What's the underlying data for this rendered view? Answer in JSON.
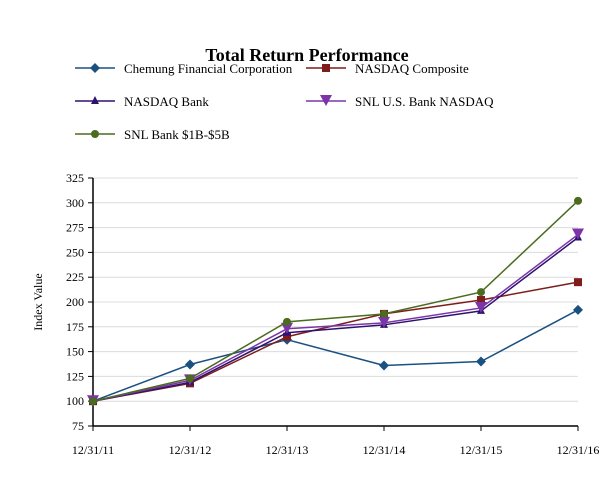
{
  "chart_data": {
    "type": "line",
    "title": "Total Return Performance",
    "xlabel": "",
    "ylabel": "Index Value",
    "categories": [
      "12/31/11",
      "12/31/12",
      "12/31/13",
      "12/31/14",
      "12/31/15",
      "12/31/16"
    ],
    "ylim": [
      75,
      325
    ],
    "yticks": [
      75,
      100,
      125,
      150,
      175,
      200,
      225,
      250,
      275,
      300,
      325
    ],
    "grid": true,
    "legend": "top",
    "series": [
      {
        "name": "Chemung Financial Corporation",
        "color": "#1b5180",
        "marker": "diamond",
        "values": [
          100,
          137,
          162,
          136,
          140,
          192
        ]
      },
      {
        "name": "NASDAQ Composite",
        "color": "#7f1d1d",
        "marker": "square",
        "values": [
          100,
          118,
          165,
          188,
          202,
          220
        ]
      },
      {
        "name": "NASDAQ Bank",
        "color": "#2e1270",
        "marker": "triangle-up",
        "values": [
          100,
          119,
          169,
          177,
          191,
          265
        ]
      },
      {
        "name": "SNL U.S. Bank NASDAQ",
        "color": "#7b35a8",
        "marker": "triangle-down",
        "values": [
          100,
          121,
          173,
          179,
          194,
          268
        ]
      },
      {
        "name": "SNL Bank $1B-$5B",
        "color": "#4b6b1e",
        "marker": "circle",
        "values": [
          100,
          123,
          180,
          188,
          210,
          302
        ]
      }
    ]
  }
}
